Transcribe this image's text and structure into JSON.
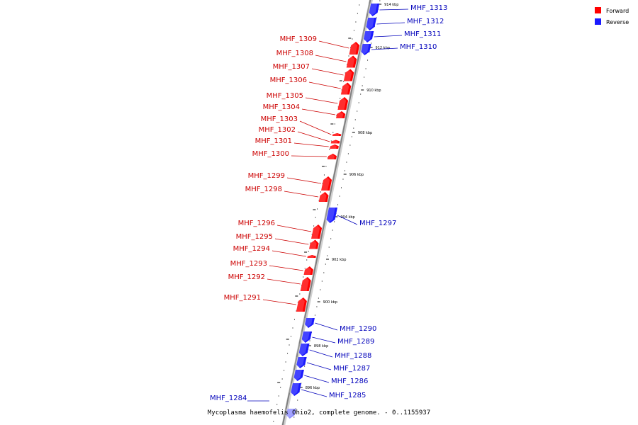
{
  "caption": "Mycoplasma haemofelis Ohio2, complete genome. - 0..1155937",
  "legend": {
    "forward": {
      "label": "Forward",
      "color": "#ff0000"
    },
    "reverse": {
      "label": "Reverse",
      "color": "#1a1aff"
    }
  },
  "colors": {
    "forward_label": "#cc0000",
    "reverse_label": "#0000bb",
    "axis": "#808080"
  },
  "ticks": [
    "914 kbp",
    "912 kbp",
    "910 kbp",
    "908 kbp",
    "906 kbp",
    "904 kbp",
    "902 kbp",
    "900 kbp",
    "898 kbp",
    "896 kbp"
  ],
  "genes_forward": [
    "MHF_1309",
    "MHF_1308",
    "MHF_1307",
    "MHF_1306",
    "MHF_1305",
    "MHF_1304",
    "MHF_1303",
    "MHF_1302",
    "MHF_1301",
    "MHF_1300",
    "MHF_1299",
    "MHF_1298",
    "MHF_1296",
    "MHF_1295",
    "MHF_1294",
    "MHF_1293",
    "MHF_1292",
    "MHF_1291"
  ],
  "genes_reverse": [
    "MHF_1313",
    "MHF_1312",
    "MHF_1311",
    "MHF_1310",
    "MHF_1297",
    "MHF_1290",
    "MHF_1289",
    "MHF_1288",
    "MHF_1287",
    "MHF_1286",
    "MHF_1285",
    "MHF_1284"
  ]
}
